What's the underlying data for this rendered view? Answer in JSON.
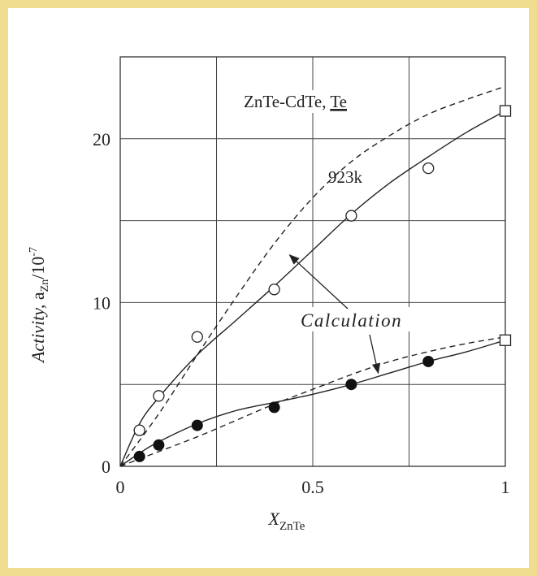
{
  "chart_data": {
    "type": "scatter",
    "title": "ZnTe-CdTe, Te",
    "title_main": "ZnTe-CdTe, ",
    "title_underlined": "Te",
    "temperature_label": "923k",
    "calc_label": "Calculation",
    "xlabel": {
      "main": "X",
      "sub": "ZnTe"
    },
    "ylabel": {
      "italic": "Activity,",
      "a": " a",
      "sub": "Zn",
      "unit": "/10",
      "sup": "-7"
    },
    "xlim": [
      0,
      1
    ],
    "ylim": [
      0,
      25
    ],
    "grid": true,
    "x_ticks": [
      0,
      0.25,
      0.5,
      0.75,
      1
    ],
    "x_tick_labels": [
      "0",
      "",
      "0.5",
      "",
      "1"
    ],
    "y_ticks": [
      0,
      5,
      10,
      15,
      20,
      25
    ],
    "y_tick_labels": [
      "0",
      "",
      "10",
      "",
      "20",
      ""
    ],
    "series": [
      {
        "marker": "open-circle",
        "x": [
          0.05,
          0.1,
          0.2,
          0.4,
          0.6,
          0.8
        ],
        "y": [
          2.2,
          4.3,
          7.9,
          10.8,
          15.3,
          18.2
        ]
      },
      {
        "marker": "filled-circle",
        "x": [
          0.05,
          0.1,
          0.2,
          0.4,
          0.6,
          0.8
        ],
        "y": [
          0.6,
          1.3,
          2.5,
          3.6,
          5.0,
          6.4
        ]
      },
      {
        "marker": "open-square",
        "x": [
          1.0,
          1.0
        ],
        "y": [
          21.7,
          7.7
        ]
      },
      {
        "line": "solid",
        "x": [
          0,
          0.05,
          0.1,
          0.2,
          0.3,
          0.4,
          0.5,
          0.6,
          0.7,
          0.8,
          0.9,
          1.0
        ],
        "y": [
          0,
          2.6,
          4.2,
          6.8,
          8.9,
          11.0,
          13.2,
          15.4,
          17.3,
          18.9,
          20.4,
          21.7
        ]
      },
      {
        "line": "dashed",
        "x": [
          0,
          0.1,
          0.2,
          0.3,
          0.4,
          0.5,
          0.6,
          0.7,
          0.8,
          0.9,
          1.0
        ],
        "y": [
          0,
          3.2,
          6.8,
          10.3,
          13.6,
          16.4,
          18.6,
          20.2,
          21.5,
          22.4,
          23.2
        ]
      },
      {
        "line": "solid",
        "x": [
          0,
          0.05,
          0.1,
          0.2,
          0.3,
          0.4,
          0.5,
          0.6,
          0.7,
          0.8,
          0.9,
          1.0
        ],
        "y": [
          0,
          0.8,
          1.5,
          2.6,
          3.4,
          3.9,
          4.4,
          5.0,
          5.7,
          6.4,
          7.0,
          7.7
        ]
      },
      {
        "line": "dashed",
        "x": [
          0,
          0.1,
          0.2,
          0.3,
          0.4,
          0.5,
          0.6,
          0.7,
          0.8,
          0.9,
          1.0
        ],
        "y": [
          0,
          0.9,
          1.8,
          2.8,
          3.8,
          4.7,
          5.6,
          6.4,
          7.0,
          7.5,
          7.9
        ]
      }
    ],
    "annotations": [
      {
        "text": "Calculation",
        "arrows_to": [
          [
            0.44,
            12.9
          ],
          [
            0.67,
            5.7
          ]
        ]
      }
    ]
  },
  "colors": {
    "frame": "#f0dd8f",
    "ink": "#222222",
    "grid": "#444444"
  }
}
